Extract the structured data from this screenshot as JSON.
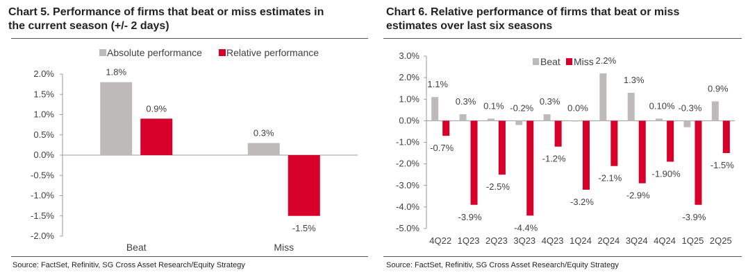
{
  "colors": {
    "absolute": "#bfbaba",
    "relative": "#d7002a",
    "axis": "#999999",
    "text": "#404040"
  },
  "chart_data": [
    {
      "type": "bar",
      "title": "Chart 5. Performance of firms that beat or miss estimates in the current season (+/- 2 days)",
      "title_lines": [
        "Chart 5. Performance of firms that beat or miss estimates in",
        "the current season (+/- 2 days)"
      ],
      "categories": [
        "Beat",
        "Miss"
      ],
      "series": [
        {
          "name": "Absolute performance",
          "values": [
            1.8,
            0.3
          ],
          "labels": [
            "1.8%",
            "0.3%"
          ]
        },
        {
          "name": "Relative performance",
          "values": [
            0.9,
            -1.5
          ],
          "labels": [
            "0.9%",
            "-1.5%"
          ]
        }
      ],
      "ylim": [
        -2.0,
        2.0
      ],
      "yticks": [
        "2.0%",
        "1.5%",
        "1.0%",
        "0.5%",
        "0.0%",
        "-0.5%",
        "-1.0%",
        "-1.5%",
        "-2.0%"
      ],
      "legend": "top",
      "source": "Source: FactSet, Refinitiv, SG Cross Asset Research/Equity Strategy"
    },
    {
      "type": "bar",
      "title": "Chart 6. Relative performance of firms that beat or miss estimates over last six seasons",
      "title_lines": [
        "Chart 6. Relative performance of firms that beat or miss",
        "estimates over last six seasons"
      ],
      "categories": [
        "4Q22",
        "1Q23",
        "2Q23",
        "3Q23",
        "4Q23",
        "1Q24",
        "2Q24",
        "3Q24",
        "4Q24",
        "1Q25",
        "2Q25"
      ],
      "series": [
        {
          "name": "Beat",
          "values": [
            1.1,
            0.3,
            0.1,
            -0.2,
            0.3,
            0.0,
            2.2,
            1.3,
            0.1,
            -0.3,
            0.9
          ],
          "labels": [
            "1.1%",
            "0.3%",
            "0.1%",
            "-0.2%",
            "0.3%",
            "0.0%",
            "2.2%",
            "1.3%",
            "0.10%",
            "-0.3%",
            "0.9%"
          ]
        },
        {
          "name": "Miss",
          "values": [
            -0.7,
            -3.9,
            -2.5,
            -4.4,
            -1.2,
            -3.2,
            -2.1,
            -2.9,
            -1.9,
            -3.9,
            -1.5
          ],
          "labels": [
            "-0.7%",
            "-3.9%",
            "-2.5%",
            "-4.4%",
            "-1.2%",
            "-3.2%",
            "-2.1%",
            "-2.9%",
            "-1.90%",
            "-3.9%",
            "-1.5%"
          ]
        }
      ],
      "ylim": [
        -5.0,
        3.0
      ],
      "yticks": [
        "3.0%",
        "2.0%",
        "1.0%",
        "0.0%",
        "-1.0%",
        "-2.0%",
        "-3.0%",
        "-4.0%",
        "-5.0%"
      ],
      "legend": "top-center",
      "source": "Source: FactSet, Refinitiv, SG Cross Asset Research/Equity Strategy"
    }
  ]
}
